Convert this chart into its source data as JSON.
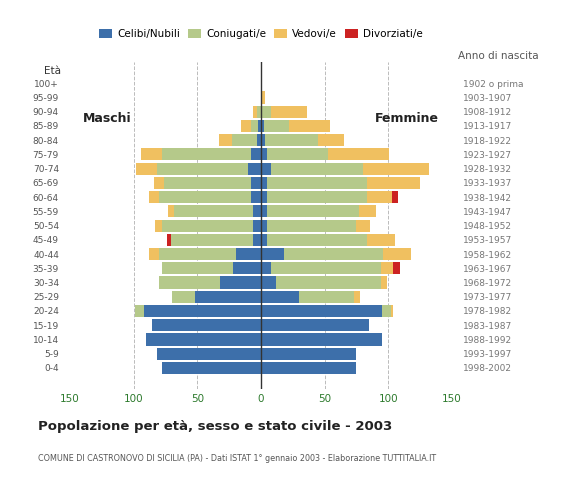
{
  "age_groups": [
    "0-4",
    "5-9",
    "10-14",
    "15-19",
    "20-24",
    "25-29",
    "30-34",
    "35-39",
    "40-44",
    "45-49",
    "50-54",
    "55-59",
    "60-64",
    "65-69",
    "70-74",
    "75-79",
    "80-84",
    "85-89",
    "90-94",
    "95-99",
    "100+"
  ],
  "birth_years": [
    "1998-2002",
    "1993-1997",
    "1988-1992",
    "1983-1987",
    "1978-1982",
    "1973-1977",
    "1968-1972",
    "1963-1967",
    "1958-1962",
    "1953-1957",
    "1948-1952",
    "1943-1947",
    "1938-1942",
    "1933-1937",
    "1928-1932",
    "1923-1927",
    "1918-1922",
    "1913-1917",
    "1908-1912",
    "1903-1907",
    "1902 o prima"
  ],
  "male_celibe": [
    78,
    82,
    90,
    86,
    92,
    52,
    32,
    22,
    20,
    6,
    6,
    6,
    8,
    8,
    10,
    8,
    3,
    2,
    0,
    0,
    0
  ],
  "male_coniugato": [
    0,
    0,
    0,
    0,
    7,
    18,
    48,
    56,
    60,
    65,
    72,
    62,
    72,
    68,
    72,
    70,
    20,
    6,
    3,
    0,
    0
  ],
  "male_vedovo": [
    0,
    0,
    0,
    0,
    0,
    0,
    0,
    0,
    8,
    0,
    5,
    5,
    8,
    8,
    16,
    16,
    10,
    8,
    3,
    0,
    0
  ],
  "male_divorziato": [
    0,
    0,
    0,
    0,
    0,
    0,
    0,
    0,
    0,
    3,
    0,
    0,
    0,
    0,
    0,
    0,
    0,
    0,
    0,
    0,
    0
  ],
  "female_nubile": [
    75,
    75,
    95,
    85,
    95,
    30,
    12,
    8,
    18,
    5,
    5,
    5,
    5,
    5,
    8,
    5,
    3,
    2,
    0,
    0,
    0
  ],
  "female_coniugata": [
    0,
    0,
    0,
    0,
    7,
    43,
    82,
    86,
    78,
    78,
    70,
    72,
    78,
    78,
    72,
    48,
    42,
    20,
    8,
    0,
    0
  ],
  "female_vedova": [
    0,
    0,
    0,
    0,
    2,
    5,
    5,
    10,
    22,
    22,
    11,
    13,
    20,
    42,
    52,
    48,
    20,
    32,
    28,
    3,
    0
  ],
  "female_divorziata": [
    0,
    0,
    0,
    0,
    0,
    0,
    0,
    5,
    0,
    0,
    0,
    0,
    5,
    0,
    0,
    0,
    0,
    0,
    0,
    0,
    0
  ],
  "color_celibe": "#3d6faa",
  "color_coniugato": "#b5c98a",
  "color_vedovo": "#f0c060",
  "color_divorziato": "#cc2222",
  "xlim": 155,
  "title": "Popolazione per età, sesso e stato civile - 2003",
  "subtitle": "COMUNE DI CASTRONOVO DI SICILIA (PA) - Dati ISTAT 1° gennaio 2003 - Elaborazione TUTTITALIA.IT",
  "bg_color": "#ffffff",
  "grid_color": "#bbbbbb",
  "label_maschi": "Maschi",
  "label_femmine": "Femmine",
  "legend_labels": [
    "Celibi/Nubili",
    "Coniugati/e",
    "Vedovi/e",
    "Divorziati/e"
  ],
  "eta_label": "Età",
  "anno_label": "Anno di nascita"
}
